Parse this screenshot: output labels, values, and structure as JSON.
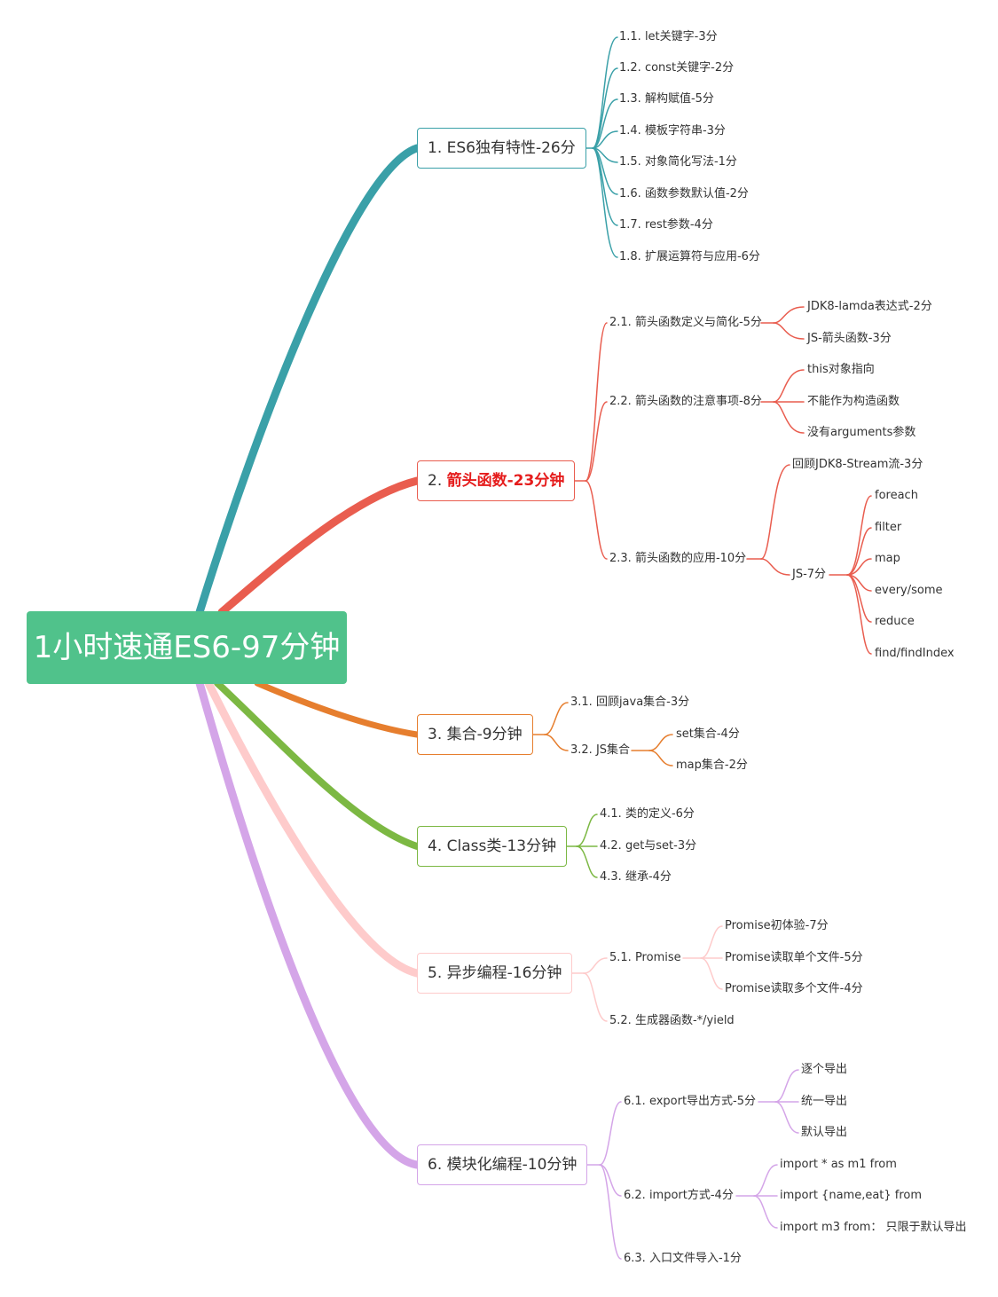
{
  "root": {
    "label": "1小时速通ES6-97分钟"
  },
  "branches": [
    {
      "label": "1. ES6独有特性-26分",
      "color": "#3aa0a8",
      "children": [
        {
          "label": "1.1. let关键字-3分"
        },
        {
          "label": "1.2. const关键字-2分"
        },
        {
          "label": "1.3. 解构赋值-5分"
        },
        {
          "label": "1.4. 模板字符串-3分"
        },
        {
          "label": "1.5. 对象简化写法-1分"
        },
        {
          "label": "1.6. 函数参数默认值-2分"
        },
        {
          "label": "1.7. rest参数-4分"
        },
        {
          "label": "1.8. 扩展运算符与应用-6分"
        }
      ]
    },
    {
      "label_prefix": "2. ",
      "label_highlight": "箭头函数-23分钟",
      "color": "#e95d4f",
      "children": [
        {
          "label": "2.1. 箭头函数定义与简化-5分",
          "children": [
            {
              "label": "JDK8-lamda表达式-2分"
            },
            {
              "label": "JS-箭头函数-3分"
            }
          ]
        },
        {
          "label": "2.2. 箭头函数的注意事项-8分",
          "children": [
            {
              "label": "this对象指向"
            },
            {
              "label": "不能作为构造函数"
            },
            {
              "label": "没有arguments参数"
            }
          ]
        },
        {
          "label": "2.3. 箭头函数的应用-10分",
          "children": [
            {
              "label": "回顾JDK8-Stream流-3分"
            },
            {
              "label": "JS-7分",
              "children": [
                {
                  "label": "foreach"
                },
                {
                  "label": "filter"
                },
                {
                  "label": "map"
                },
                {
                  "label": "every/some"
                },
                {
                  "label": "reduce"
                },
                {
                  "label": "find/findIndex"
                }
              ]
            }
          ]
        }
      ]
    },
    {
      "label": "3. 集合-9分钟",
      "color": "#e67e2e",
      "children": [
        {
          "label": "3.1. 回顾java集合-3分"
        },
        {
          "label": "3.2. JS集合",
          "children": [
            {
              "label": "set集合-4分"
            },
            {
              "label": "map集合-2分"
            }
          ]
        }
      ]
    },
    {
      "label": "4. Class类-13分钟",
      "color": "#7cb843",
      "children": [
        {
          "label": "4.1. 类的定义-6分"
        },
        {
          "label": "4.2. get与set-3分"
        },
        {
          "label": "4.3. 继承-4分"
        }
      ]
    },
    {
      "label": "5. 异步编程-16分钟",
      "color": "#fecbcb",
      "children": [
        {
          "label": "5.1. Promise",
          "children": [
            {
              "label": "Promise初体验-7分"
            },
            {
              "label": "Promise读取单个文件-5分"
            },
            {
              "label": "Promise读取多个文件-4分"
            }
          ]
        },
        {
          "label": "5.2. 生成器函数-*/yield"
        }
      ]
    },
    {
      "label": "6. 模块化编程-10分钟",
      "color": "#d4a5e8",
      "children": [
        {
          "label": "6.1. export导出方式-5分",
          "children": [
            {
              "label": "逐个导出"
            },
            {
              "label": "统一导出"
            },
            {
              "label": "默认导出"
            }
          ]
        },
        {
          "label": "6.2. import方式-4分",
          "children": [
            {
              "label": "import * as m1 from"
            },
            {
              "label": "import {name,eat} from"
            },
            {
              "label": "import m3 from： 只限于默认导出"
            }
          ]
        },
        {
          "label": "6.3. 入口文件导入-1分"
        }
      ]
    }
  ]
}
